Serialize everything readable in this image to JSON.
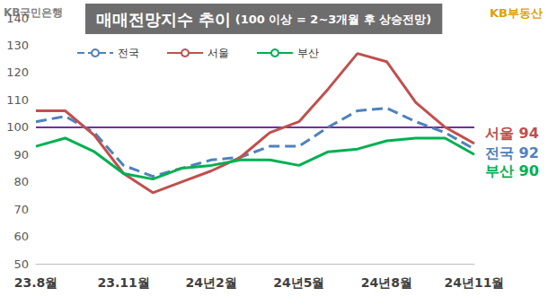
{
  "chart_data": {
    "type": "line",
    "title": "매매전망지수 추이",
    "subtitle": "(100 이상 = 2~3개월 후 상승전망)",
    "bank_logo": "KB국민은행",
    "brand_logo": "KB부동산",
    "categories": [
      "23.8월",
      null,
      null,
      "23.11월",
      null,
      null,
      "24년2월",
      null,
      null,
      "24년5월",
      null,
      null,
      "24년8월",
      null,
      null,
      "24년11월"
    ],
    "series": [
      {
        "name": "전국",
        "color": "#4f81bd",
        "line_style": "dashed",
        "end_label": "전국 92",
        "values": [
          102,
          104,
          98,
          86,
          82,
          85,
          88,
          89,
          93,
          93,
          100,
          106,
          107,
          102,
          98,
          92
        ]
      },
      {
        "name": "서울",
        "color": "#c0504d",
        "line_style": "solid",
        "end_label": "서울 94",
        "values": [
          106,
          106,
          97,
          83,
          76,
          80,
          84,
          89,
          98,
          102,
          114,
          127,
          124,
          109,
          100,
          94
        ]
      },
      {
        "name": "부산",
        "color": "#00b050",
        "line_style": "solid",
        "end_label": "부산 90",
        "values": [
          93,
          96,
          91,
          83,
          81,
          85,
          86,
          88,
          88,
          86,
          91,
          92,
          95,
          96,
          96,
          90
        ]
      }
    ],
    "reference_line": {
      "value": 100,
      "color": "#7030a0"
    },
    "ylim": [
      50,
      140
    ],
    "yticks": [
      50,
      60,
      70,
      80,
      90,
      100,
      110,
      120,
      130,
      140
    ],
    "grid": false,
    "marker": "none",
    "legend": "top"
  }
}
